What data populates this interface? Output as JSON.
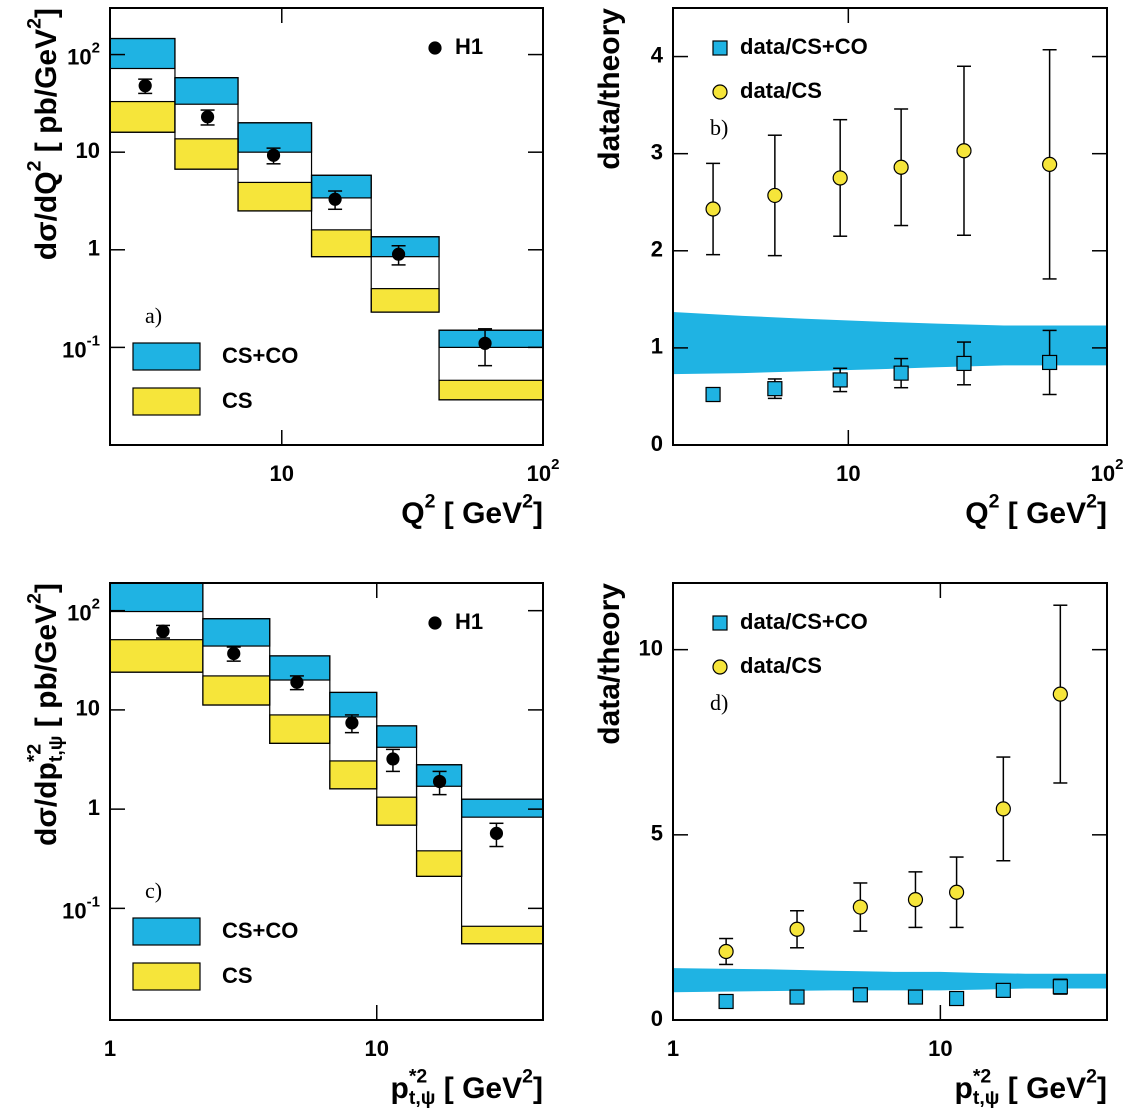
{
  "chart_data": [
    {
      "type": "step-band",
      "panel_label": "a)",
      "log_x": true,
      "log_y": true,
      "xlabel": [
        {
          "text": "Q"
        },
        {
          "text": "2",
          "pos": "sup"
        },
        {
          "text": " [ GeV"
        },
        {
          "text": "2",
          "pos": "sup"
        },
        {
          "text": "]"
        }
      ],
      "ylabel": [
        {
          "text": "dσ/dQ"
        },
        {
          "text": "2",
          "pos": "sup"
        },
        {
          "text": " [ pb/GeV"
        },
        {
          "text": "2",
          "pos": "sup"
        },
        {
          "text": "]"
        }
      ],
      "xlim": [
        2.2,
        100
      ],
      "ylim": [
        0.01,
        300
      ],
      "xticks": [
        10,
        {
          "value": 100,
          "label": "10",
          "sup": "2"
        }
      ],
      "yticks": [
        {
          "value": 0.1,
          "label": "10",
          "sup": "-1"
        },
        1,
        10,
        {
          "value": 100,
          "label": "10",
          "sup": "2"
        }
      ],
      "bins": [
        2.2,
        3.9,
        6.8,
        13,
        22,
        40,
        100
      ],
      "series": [
        {
          "name": "CS+CO",
          "kind": "step-band",
          "color": "#1fb3e3",
          "lower": [
            72,
            31,
            10,
            3.4,
            0.85,
            0.1
          ],
          "upper": [
            146,
            58,
            20,
            5.8,
            1.36,
            0.15
          ]
        },
        {
          "name": "CS",
          "kind": "step-band",
          "color": "#f6e53a",
          "lower": [
            16,
            6.7,
            2.5,
            0.85,
            0.23,
            0.029
          ],
          "upper": [
            33,
            13.7,
            4.9,
            1.6,
            0.4,
            0.046
          ]
        },
        {
          "name": "H1",
          "kind": "points",
          "marker": "circle",
          "color": "#000000",
          "x": [
            3,
            5.2,
            9.3,
            16,
            28,
            60
          ],
          "values": [
            48,
            23,
            9.3,
            3.3,
            0.9,
            0.11
          ],
          "errors": [
            8,
            4,
            1.7,
            0.7,
            0.2,
            0.045
          ]
        }
      ]
    },
    {
      "type": "ratio",
      "panel_label": "b)",
      "log_x": true,
      "log_y": false,
      "xlabel": [
        {
          "text": "Q"
        },
        {
          "text": "2",
          "pos": "sup"
        },
        {
          "text": " [ GeV"
        },
        {
          "text": "2",
          "pos": "sup"
        },
        {
          "text": "]"
        }
      ],
      "ylabel": [
        {
          "text": "data/theory"
        }
      ],
      "xlim": [
        2.1,
        100
      ],
      "ylim": [
        0,
        4.5
      ],
      "xticks": [
        10,
        {
          "value": 100,
          "label": "10",
          "sup": "2"
        }
      ],
      "yticks": [
        0,
        1,
        2,
        3,
        4
      ],
      "series": [
        {
          "kind": "band",
          "color": "#1fb3e3",
          "x": [
            2.1,
            3.9,
            6.8,
            13,
            22,
            40,
            100
          ],
          "upper": [
            1.37,
            1.33,
            1.3,
            1.27,
            1.25,
            1.23,
            1.23
          ],
          "lower": [
            0.73,
            0.74,
            0.76,
            0.78,
            0.8,
            0.82,
            0.82
          ]
        },
        {
          "name": "data/CS+CO",
          "kind": "points",
          "marker": "square",
          "color": "#1fb3e3",
          "x": [
            3,
            5.2,
            9.3,
            16,
            28,
            60
          ],
          "values": [
            0.52,
            0.58,
            0.67,
            0.74,
            0.84,
            0.85
          ],
          "errors": [
            0.07,
            0.1,
            0.12,
            0.15,
            0.22,
            0.33
          ]
        },
        {
          "name": "data/CS",
          "kind": "points",
          "marker": "circle",
          "color": "#f6e53a",
          "x": [
            3,
            5.2,
            9.3,
            16,
            28,
            60
          ],
          "values": [
            2.43,
            2.57,
            2.75,
            2.86,
            3.03,
            2.89
          ],
          "errors": [
            0.47,
            0.62,
            0.6,
            0.6,
            0.87,
            1.18
          ]
        }
      ]
    },
    {
      "type": "step-band",
      "panel_label": "c)",
      "log_x": true,
      "log_y": true,
      "xlabel": [
        {
          "text": "p"
        },
        {
          "text": "*2",
          "pos": "sup"
        },
        {
          "text": "t,ψ",
          "pos": "sub"
        },
        {
          "text": " [ GeV"
        },
        {
          "text": "2",
          "pos": "sup"
        },
        {
          "text": "]"
        }
      ],
      "ylabel": [
        {
          "text": "dσ/dp"
        },
        {
          "text": "*2",
          "pos": "sup"
        },
        {
          "text": "t,ψ",
          "pos": "sub"
        },
        {
          "text": " [ pb/GeV"
        },
        {
          "text": "2",
          "pos": "sup"
        },
        {
          "text": "]"
        }
      ],
      "xlim": [
        1,
        42
      ],
      "ylim": [
        0.0075,
        190
      ],
      "xticks": [
        1,
        10
      ],
      "yticks": [
        {
          "value": 0.1,
          "label": "10",
          "sup": "-1"
        },
        1,
        10,
        {
          "value": 100,
          "label": "10",
          "sup": "2"
        }
      ],
      "bins": [
        1,
        2.23,
        3.97,
        6.67,
        10,
        14.1,
        20.8,
        42
      ],
      "series": [
        {
          "name": "CS+CO",
          "kind": "step-band",
          "color": "#1fb3e3",
          "lower": [
            98,
            44,
            20,
            8.5,
            4.2,
            1.7,
            0.83
          ],
          "upper": [
            190,
            83,
            35,
            15,
            6.9,
            2.8,
            1.26
          ]
        },
        {
          "name": "CS",
          "kind": "step-band",
          "color": "#f6e53a",
          "lower": [
            24,
            11.2,
            4.6,
            1.6,
            0.69,
            0.21,
            0.044
          ],
          "upper": [
            51,
            22,
            8.9,
            3.06,
            1.32,
            0.38,
            0.066
          ]
        },
        {
          "name": "H1",
          "kind": "points",
          "marker": "circle",
          "color": "#000000",
          "x": [
            1.58,
            2.91,
            5.02,
            8.07,
            11.5,
            17.2,
            28.1
          ],
          "values": [
            62,
            37,
            19,
            7.4,
            3.2,
            1.9,
            0.57
          ],
          "errors": [
            9,
            6,
            3,
            1.5,
            0.8,
            0.5,
            0.15
          ]
        }
      ]
    },
    {
      "type": "ratio",
      "panel_label": "d)",
      "log_x": true,
      "log_y": false,
      "xlabel": [
        {
          "text": "p"
        },
        {
          "text": "*2",
          "pos": "sup"
        },
        {
          "text": "t,ψ",
          "pos": "sub"
        },
        {
          "text": " [ GeV"
        },
        {
          "text": "2",
          "pos": "sup"
        },
        {
          "text": "]"
        }
      ],
      "ylabel": [
        {
          "text": "data/theory"
        }
      ],
      "xlim": [
        1,
        42
      ],
      "ylim": [
        0,
        11.8
      ],
      "xticks": [
        1,
        10
      ],
      "yticks": [
        0,
        5,
        10
      ],
      "series": [
        {
          "kind": "band",
          "color": "#1fb3e3",
          "x": [
            1,
            2.23,
            3.97,
            6.67,
            10,
            14.1,
            20.8,
            42
          ],
          "upper": [
            1.4,
            1.37,
            1.33,
            1.3,
            1.3,
            1.27,
            1.25,
            1.25
          ],
          "lower": [
            0.75,
            0.78,
            0.8,
            0.8,
            0.8,
            0.82,
            0.85,
            0.85
          ]
        },
        {
          "name": "data/CS+CO",
          "kind": "points",
          "marker": "square",
          "color": "#1fb3e3",
          "x": [
            1.58,
            2.91,
            5.02,
            8.07,
            11.5,
            17.2,
            28.1
          ],
          "values": [
            0.5,
            0.62,
            0.68,
            0.62,
            0.58,
            0.8,
            0.9
          ],
          "errors": [
            0.1,
            0.12,
            0.12,
            0.12,
            0.12,
            0.15,
            0.2
          ]
        },
        {
          "name": "data/CS",
          "kind": "points",
          "marker": "circle",
          "color": "#f6e53a",
          "x": [
            1.58,
            2.91,
            5.02,
            8.07,
            11.5,
            17.2,
            28.1
          ],
          "values": [
            1.85,
            2.45,
            3.05,
            3.25,
            3.45,
            5.7,
            8.8
          ],
          "errors": [
            0.35,
            0.5,
            0.65,
            0.75,
            0.95,
            1.4,
            2.4
          ]
        }
      ]
    }
  ]
}
